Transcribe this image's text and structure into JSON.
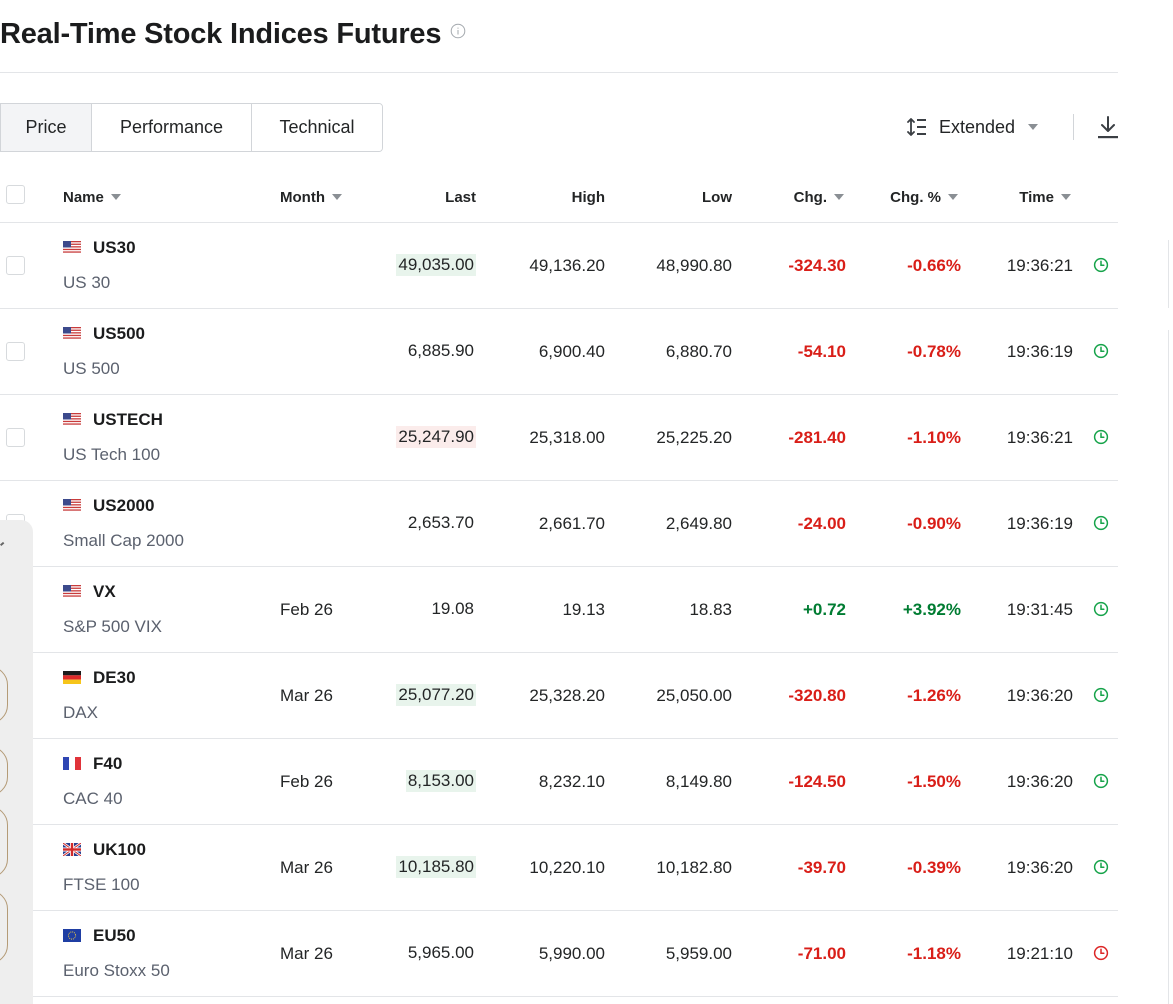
{
  "header": {
    "title": "Real-Time Stock Indices Futures"
  },
  "tabs": [
    {
      "label": "Price",
      "active": true
    },
    {
      "label": "Performance",
      "active": false
    },
    {
      "label": "Technical",
      "active": false
    }
  ],
  "toolbar": {
    "view_label": "Extended",
    "view_icon": "line-height-icon",
    "download_icon": "download-icon"
  },
  "table": {
    "columns": {
      "name": "Name",
      "month": "Month",
      "last": "Last",
      "high": "High",
      "low": "Low",
      "chg": "Chg.",
      "chg_pct": "Chg. %",
      "time": "Time"
    },
    "rows": [
      {
        "symbol": "US30",
        "name": "US 30",
        "flag": "us",
        "month": "",
        "last": "49,035.00",
        "last_flash": "up",
        "high": "49,136.20",
        "low": "48,990.80",
        "chg": "-324.30",
        "chg_pct": "-0.66%",
        "time": "19:36:21",
        "status": "open"
      },
      {
        "symbol": "US500",
        "name": "US 500",
        "flag": "us",
        "month": "",
        "last": "6,885.90",
        "last_flash": "none",
        "high": "6,900.40",
        "low": "6,880.70",
        "chg": "-54.10",
        "chg_pct": "-0.78%",
        "time": "19:36:19",
        "status": "open"
      },
      {
        "symbol": "USTECH",
        "name": "US Tech 100",
        "flag": "us",
        "month": "",
        "last": "25,247.90",
        "last_flash": "down",
        "high": "25,318.00",
        "low": "25,225.20",
        "chg": "-281.40",
        "chg_pct": "-1.10%",
        "time": "19:36:21",
        "status": "open"
      },
      {
        "symbol": "US2000",
        "name": "Small Cap 2000",
        "flag": "us",
        "month": "",
        "last": "2,653.70",
        "last_flash": "none",
        "high": "2,661.70",
        "low": "2,649.80",
        "chg": "-24.00",
        "chg_pct": "-0.90%",
        "time": "19:36:19",
        "status": "open"
      },
      {
        "symbol": "VX",
        "name": "S&P 500 VIX",
        "flag": "us",
        "month": "Feb 26",
        "last": "19.08",
        "last_flash": "none",
        "high": "19.13",
        "low": "18.83",
        "chg": "+0.72",
        "chg_pct": "+3.92%",
        "time": "19:31:45",
        "status": "open"
      },
      {
        "symbol": "DE30",
        "name": "DAX",
        "flag": "de",
        "month": "Mar 26",
        "last": "25,077.20",
        "last_flash": "up",
        "high": "25,328.20",
        "low": "25,050.00",
        "chg": "-320.80",
        "chg_pct": "-1.26%",
        "time": "19:36:20",
        "status": "open"
      },
      {
        "symbol": "F40",
        "name": "CAC 40",
        "flag": "fr",
        "month": "Feb 26",
        "last": "8,153.00",
        "last_flash": "up",
        "high": "8,232.10",
        "low": "8,149.80",
        "chg": "-124.50",
        "chg_pct": "-1.50%",
        "time": "19:36:20",
        "status": "open"
      },
      {
        "symbol": "UK100",
        "name": "FTSE 100",
        "flag": "gb",
        "month": "Mar 26",
        "last": "10,185.80",
        "last_flash": "up",
        "high": "10,220.10",
        "low": "10,182.80",
        "chg": "-39.70",
        "chg_pct": "-0.39%",
        "time": "19:36:20",
        "status": "open"
      },
      {
        "symbol": "EU50",
        "name": "Euro Stoxx 50",
        "flag": "eu",
        "month": "Mar 26",
        "last": "5,965.00",
        "last_flash": "none",
        "high": "5,990.00",
        "low": "5,959.00",
        "chg": "-71.00",
        "chg_pct": "-1.18%",
        "time": "19:21:10",
        "status": "closed"
      }
    ]
  },
  "colors": {
    "negative": "#d91e18",
    "positive": "#007c32",
    "open_clock": "#16a34a",
    "closed_clock": "#dc2626"
  }
}
